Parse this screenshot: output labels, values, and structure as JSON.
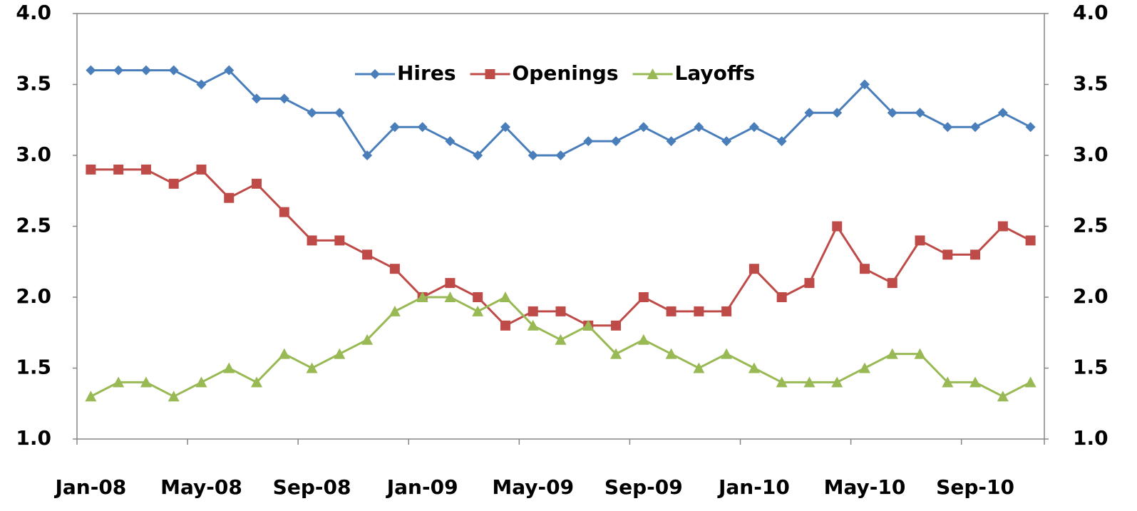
{
  "chart_data": {
    "type": "line",
    "categories": [
      "Jan-08",
      null,
      null,
      null,
      "May-08",
      null,
      null,
      null,
      "Sep-08",
      null,
      null,
      null,
      "Jan-09",
      null,
      null,
      null,
      "May-09",
      null,
      null,
      null,
      "Sep-09",
      null,
      null,
      null,
      "Jan-10",
      null,
      null,
      null,
      "May-10",
      null,
      null,
      null,
      "Sep-10",
      null,
      null
    ],
    "series": [
      {
        "name": "Hires",
        "color": "#4a7ebb",
        "marker": "diamond",
        "values": [
          3.6,
          3.6,
          3.6,
          3.6,
          3.5,
          3.6,
          3.4,
          3.4,
          3.3,
          3.3,
          3.0,
          3.2,
          3.2,
          3.1,
          3.0,
          3.2,
          3.0,
          3.0,
          3.1,
          3.1,
          3.2,
          3.1,
          3.2,
          3.1,
          3.2,
          3.1,
          3.3,
          3.3,
          3.5,
          3.3,
          3.3,
          3.2,
          3.2,
          3.3,
          3.2
        ]
      },
      {
        "name": "Openings",
        "color": "#be4b48",
        "marker": "square",
        "values": [
          2.9,
          2.9,
          2.9,
          2.8,
          2.9,
          2.7,
          2.8,
          2.6,
          2.4,
          2.4,
          2.3,
          2.2,
          2.0,
          2.1,
          2.0,
          1.8,
          1.9,
          1.9,
          1.8,
          1.8,
          2.0,
          1.9,
          1.9,
          1.9,
          2.2,
          2.0,
          2.1,
          2.5,
          2.2,
          2.1,
          2.4,
          2.3,
          2.3,
          2.5,
          2.4
        ]
      },
      {
        "name": "Layoffs",
        "color": "#98b954",
        "marker": "triangle",
        "values": [
          1.3,
          1.4,
          1.4,
          1.3,
          1.4,
          1.5,
          1.4,
          1.6,
          1.5,
          1.6,
          1.7,
          1.9,
          2.0,
          2.0,
          1.9,
          2.0,
          1.8,
          1.7,
          1.8,
          1.6,
          1.7,
          1.6,
          1.5,
          1.6,
          1.5,
          1.4,
          1.4,
          1.4,
          1.5,
          1.6,
          1.6,
          1.4,
          1.4,
          1.3,
          1.4
        ]
      }
    ],
    "ylim": [
      1.0,
      4.0
    ],
    "yticks": [
      {
        "value": 1.0,
        "label": "1.0"
      },
      {
        "value": 1.5,
        "label": "1.5"
      },
      {
        "value": 2.0,
        "label": "2.0"
      },
      {
        "value": 2.5,
        "label": "2.5"
      },
      {
        "value": 3.0,
        "label": "3.0"
      },
      {
        "value": 3.5,
        "label": "3.5"
      },
      {
        "value": 4.0,
        "label": "4.0"
      }
    ],
    "y2lim": [
      1.0,
      4.0
    ],
    "y2ticks": [
      {
        "value": 1.0,
        "label": "1.0"
      },
      {
        "value": 1.5,
        "label": "1.5"
      },
      {
        "value": 2.0,
        "label": "2.0"
      },
      {
        "value": 2.5,
        "label": "2.5"
      },
      {
        "value": 3.0,
        "label": "3.0"
      },
      {
        "value": 3.5,
        "label": "3.5"
      },
      {
        "value": 4.0,
        "label": "4.0"
      }
    ],
    "grid": false,
    "legend": "top"
  }
}
